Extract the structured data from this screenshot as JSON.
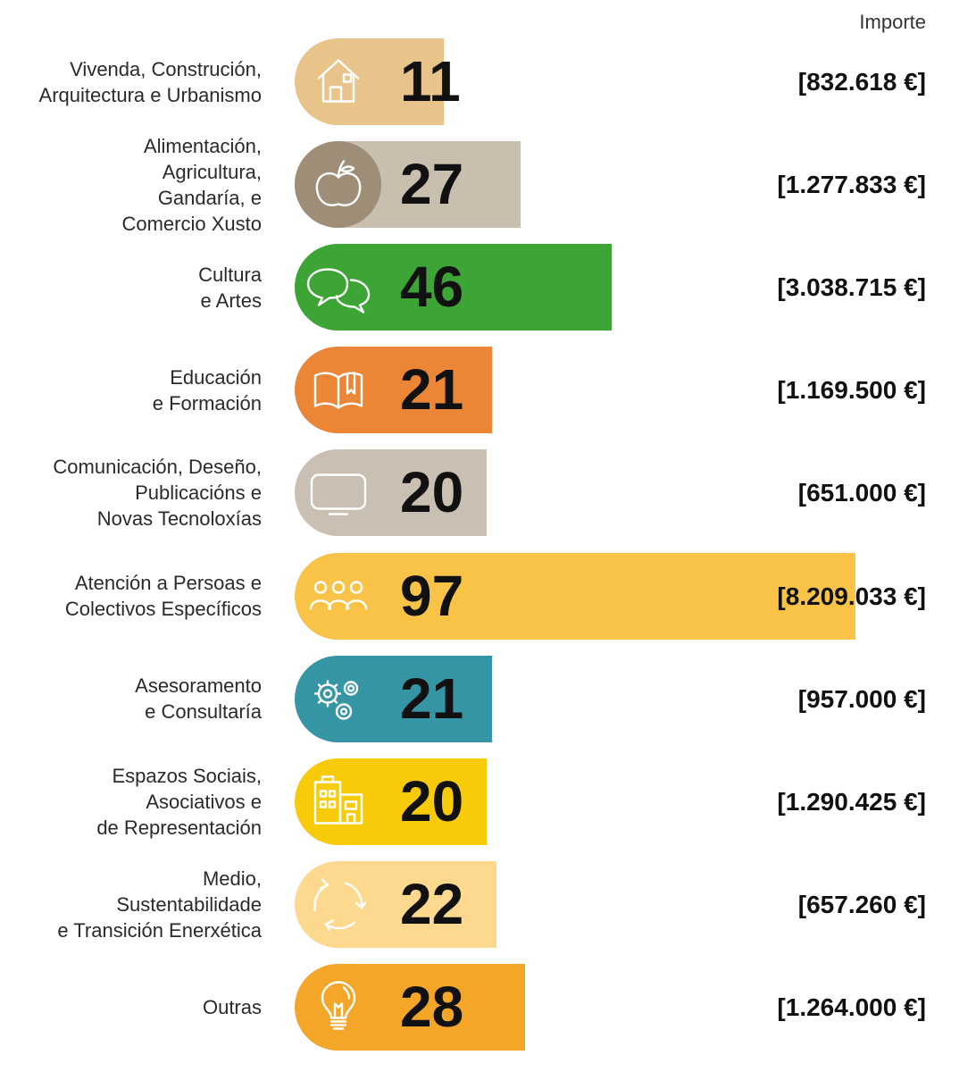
{
  "chart_data": {
    "type": "bar",
    "orientation": "horizontal",
    "header_amount": "Importe",
    "rows": [
      {
        "label": "Vivenda, Construción,\nArquitectura e Urbanismo",
        "count": 11,
        "count_label": "11",
        "amount": "[832.618 €]",
        "amount_value": 832618,
        "color": "#E8C38A",
        "icon": "house-icon"
      },
      {
        "label": "Alimentación,\nAgricultura,\nGandaría, e\nComercio Xusto",
        "count": 27,
        "count_label": "27",
        "amount": "[1.277.833 €]",
        "amount_value": 1277833,
        "color": "#C9BFAF",
        "icon_bg": "#9E8E78",
        "icon": "apple-icon"
      },
      {
        "label": "Cultura\ne Artes",
        "count": 46,
        "count_label": "46",
        "amount": "[3.038.715 €]",
        "amount_value": 3038715,
        "color": "#3CA535",
        "icon": "speech-bubbles-icon"
      },
      {
        "label": "Educación\ne Formación",
        "count": 21,
        "count_label": "21",
        "amount": "[1.169.500 €]",
        "amount_value": 1169500,
        "color": "#EA8636",
        "icon": "book-icon"
      },
      {
        "label": "Comunicación, Deseño,\nPublicacións e\nNovas Tecnoloxías",
        "count": 20,
        "count_label": "20",
        "amount": "[651.000 €]",
        "amount_value": 651000,
        "color": "#C9BFB3",
        "icon": "monitor-icon"
      },
      {
        "label": "Atención a Persoas e\nColectivos Específicos",
        "count": 97,
        "count_label": "97",
        "amount": "[8.209.033 €]",
        "amount_value": 8209033,
        "color": "#F8C347",
        "icon": "people-icon"
      },
      {
        "label": "Asesoramento\ne Consultaría",
        "count": 21,
        "count_label": "21",
        "amount": "[957.000 €]",
        "amount_value": 957000,
        "color": "#3595A5",
        "icon": "gears-icon"
      },
      {
        "label": "Espazos Sociais,\nAsociativos e\nde Representación",
        "count": 20,
        "count_label": "20",
        "amount": "[1.290.425 €]",
        "amount_value": 1290425,
        "color": "#F8CB0A",
        "icon": "buildings-icon"
      },
      {
        "label": "Medio,\nSustentabilidade\ne Transición Enerxética",
        "count": 22,
        "count_label": "22",
        "amount": "[657.260 €]",
        "amount_value": 657260,
        "color": "#FCD98E",
        "icon": "recycle-icon"
      },
      {
        "label": "Outras",
        "count": 28,
        "count_label": "28",
        "amount": "[1.264.000 €]",
        "amount_value": 1264000,
        "color": "#F3A628",
        "icon": "lightbulb-icon"
      }
    ]
  }
}
